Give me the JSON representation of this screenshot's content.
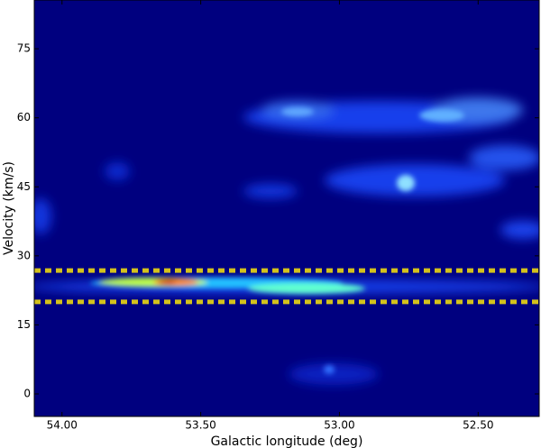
{
  "chart_data": {
    "type": "heatmap",
    "xlabel": "Galactic longitude (deg)",
    "ylabel": "Velocity (km/s)",
    "xlim": [
      54.1,
      52.28
    ],
    "ylim": [
      -4.9,
      85.6
    ],
    "xticks": [
      {
        "value": 54.0,
        "label": "54.00"
      },
      {
        "value": 53.5,
        "label": "53.50"
      },
      {
        "value": 53.0,
        "label": "53.00"
      },
      {
        "value": 52.5,
        "label": "52.50"
      }
    ],
    "yticks": [
      0,
      15,
      30,
      45,
      60,
      75
    ],
    "hlines": [
      26.8,
      20.0
    ],
    "hline_color": "#d4c21c",
    "background": "#00007f"
  }
}
